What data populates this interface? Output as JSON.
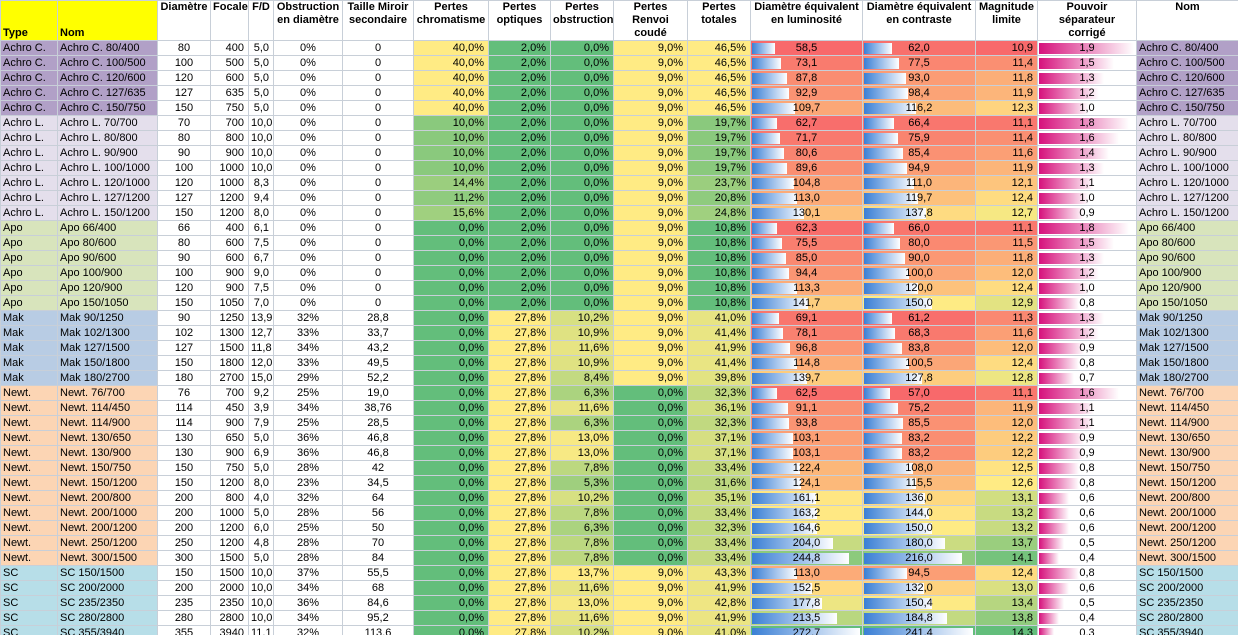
{
  "table": {
    "header": [
      "Type",
      "Nom",
      "Diamètre",
      "Focale",
      "F/D",
      "Obstruction en diamètre",
      "Taille Miroir secondaire",
      "Pertes chromatisme",
      "Pertes optiques",
      "Pertes obstruction",
      "Pertes Renvoi coudé",
      "Pertes totales",
      "Diamètre équivalent en luminosité",
      "Diamètre équivalent en contraste",
      "Magnitude limite",
      "Pouvoir séparateur corrigé",
      "Nom"
    ],
    "rows": [
      [
        "Achro C.",
        "Achro C.  80/400",
        "80",
        "400",
        "5,0",
        "0%",
        "0",
        "40,0%",
        "2,0%",
        "0,0%",
        "9,0%",
        "46,5%",
        "58,5",
        "62,0",
        "10,9",
        "1,9",
        "Achro C.  80/400"
      ],
      [
        "Achro C.",
        "Achro C.  100/500",
        "100",
        "500",
        "5,0",
        "0%",
        "0",
        "40,0%",
        "2,0%",
        "0,0%",
        "9,0%",
        "46,5%",
        "73,1",
        "77,5",
        "11,4",
        "1,5",
        "Achro C.  100/500"
      ],
      [
        "Achro C.",
        "Achro C.  120/600",
        "120",
        "600",
        "5,0",
        "0%",
        "0",
        "40,0%",
        "2,0%",
        "0,0%",
        "9,0%",
        "46,5%",
        "87,8",
        "93,0",
        "11,8",
        "1,3",
        "Achro C.  120/600"
      ],
      [
        "Achro C.",
        "Achro C.  127/635",
        "127",
        "635",
        "5,0",
        "0%",
        "0",
        "40,0%",
        "2,0%",
        "0,0%",
        "9,0%",
        "46,5%",
        "92,9",
        "98,4",
        "11,9",
        "1,2",
        "Achro C.  127/635"
      ],
      [
        "Achro C.",
        "Achro C.  150/750",
        "150",
        "750",
        "5,0",
        "0%",
        "0",
        "40,0%",
        "2,0%",
        "0,0%",
        "9,0%",
        "46,5%",
        "109,7",
        "116,2",
        "12,3",
        "1,0",
        "Achro C.  150/750"
      ],
      [
        "Achro L.",
        "Achro L.  70/700",
        "70",
        "700",
        "10,0",
        "0%",
        "0",
        "10,0%",
        "2,0%",
        "0,0%",
        "9,0%",
        "19,7%",
        "62,7",
        "66,4",
        "11,1",
        "1,8",
        "Achro L.  70/700"
      ],
      [
        "Achro L.",
        "Achro L.  80/800",
        "80",
        "800",
        "10,0",
        "0%",
        "0",
        "10,0%",
        "2,0%",
        "0,0%",
        "9,0%",
        "19,7%",
        "71,7",
        "75,9",
        "11,4",
        "1,6",
        "Achro L.  80/800"
      ],
      [
        "Achro L.",
        "Achro L.  90/900",
        "90",
        "900",
        "10,0",
        "0%",
        "0",
        "10,0%",
        "2,0%",
        "0,0%",
        "9,0%",
        "19,7%",
        "80,6",
        "85,4",
        "11,6",
        "1,4",
        "Achro L.  90/900"
      ],
      [
        "Achro L.",
        "Achro L.  100/1000",
        "100",
        "1000",
        "10,0",
        "0%",
        "0",
        "10,0%",
        "2,0%",
        "0,0%",
        "9,0%",
        "19,7%",
        "89,6",
        "94,9",
        "11,9",
        "1,3",
        "Achro L.  100/1000"
      ],
      [
        "Achro L.",
        "Achro L.  120/1000",
        "120",
        "1000",
        "8,3",
        "0%",
        "0",
        "14,4%",
        "2,0%",
        "0,0%",
        "9,0%",
        "23,7%",
        "104,8",
        "111,0",
        "12,1",
        "1,1",
        "Achro L.  120/1000"
      ],
      [
        "Achro L.",
        "Achro L.  127/1200",
        "127",
        "1200",
        "9,4",
        "0%",
        "0",
        "11,2%",
        "2,0%",
        "0,0%",
        "9,0%",
        "20,8%",
        "113,0",
        "119,7",
        "12,4",
        "1,0",
        "Achro L.  127/1200"
      ],
      [
        "Achro L.",
        "Achro L.  150/1200",
        "150",
        "1200",
        "8,0",
        "0%",
        "0",
        "15,6%",
        "2,0%",
        "0,0%",
        "9,0%",
        "24,8%",
        "130,1",
        "137,8",
        "12,7",
        "0,9",
        "Achro L.  150/1200"
      ],
      [
        "Apo",
        "Apo  66/400",
        "66",
        "400",
        "6,1",
        "0%",
        "0",
        "0,0%",
        "2,0%",
        "0,0%",
        "9,0%",
        "10,8%",
        "62,3",
        "66,0",
        "11,1",
        "1,8",
        "Apo  66/400"
      ],
      [
        "Apo",
        "Apo  80/600",
        "80",
        "600",
        "7,5",
        "0%",
        "0",
        "0,0%",
        "2,0%",
        "0,0%",
        "9,0%",
        "10,8%",
        "75,5",
        "80,0",
        "11,5",
        "1,5",
        "Apo  80/600"
      ],
      [
        "Apo",
        "Apo  90/600",
        "90",
        "600",
        "6,7",
        "0%",
        "0",
        "0,0%",
        "2,0%",
        "0,0%",
        "9,0%",
        "10,8%",
        "85,0",
        "90,0",
        "11,8",
        "1,3",
        "Apo  90/600"
      ],
      [
        "Apo",
        "Apo  100/900",
        "100",
        "900",
        "9,0",
        "0%",
        "0",
        "0,0%",
        "2,0%",
        "0,0%",
        "9,0%",
        "10,8%",
        "94,4",
        "100,0",
        "12,0",
        "1,2",
        "Apo  100/900"
      ],
      [
        "Apo",
        "Apo  120/900",
        "120",
        "900",
        "7,5",
        "0%",
        "0",
        "0,0%",
        "2,0%",
        "0,0%",
        "9,0%",
        "10,8%",
        "113,3",
        "120,0",
        "12,4",
        "1,0",
        "Apo  120/900"
      ],
      [
        "Apo",
        "Apo  150/1050",
        "150",
        "1050",
        "7,0",
        "0%",
        "0",
        "0,0%",
        "2,0%",
        "0,0%",
        "9,0%",
        "10,8%",
        "141,7",
        "150,0",
        "12,9",
        "0,8",
        "Apo  150/1050"
      ],
      [
        "Mak",
        "Mak  90/1250",
        "90",
        "1250",
        "13,9",
        "32%",
        "28,8",
        "0,0%",
        "27,8%",
        "10,2%",
        "9,0%",
        "41,0%",
        "69,1",
        "61,2",
        "11,3",
        "1,3",
        "Mak  90/1250"
      ],
      [
        "Mak",
        "Mak  102/1300",
        "102",
        "1300",
        "12,7",
        "33%",
        "33,7",
        "0,0%",
        "27,8%",
        "10,9%",
        "9,0%",
        "41,4%",
        "78,1",
        "68,3",
        "11,6",
        "1,2",
        "Mak  102/1300"
      ],
      [
        "Mak",
        "Mak  127/1500",
        "127",
        "1500",
        "11,8",
        "34%",
        "43,2",
        "0,0%",
        "27,8%",
        "11,6%",
        "9,0%",
        "41,9%",
        "96,8",
        "83,8",
        "12,0",
        "0,9",
        "Mak  127/1500"
      ],
      [
        "Mak",
        "Mak  150/1800",
        "150",
        "1800",
        "12,0",
        "33%",
        "49,5",
        "0,0%",
        "27,8%",
        "10,9%",
        "9,0%",
        "41,4%",
        "114,8",
        "100,5",
        "12,4",
        "0,8",
        "Mak  150/1800"
      ],
      [
        "Mak",
        "Mak  180/2700",
        "180",
        "2700",
        "15,0",
        "29%",
        "52,2",
        "0,0%",
        "27,8%",
        "8,4%",
        "9,0%",
        "39,8%",
        "139,7",
        "127,8",
        "12,8",
        "0,7",
        "Mak  180/2700"
      ],
      [
        "Newt.",
        "Newt.  76/700",
        "76",
        "700",
        "9,2",
        "25%",
        "19,0",
        "0,0%",
        "27,8%",
        "6,3%",
        "0,0%",
        "32,3%",
        "62,5",
        "57,0",
        "11,1",
        "1,6",
        "Newt.  76/700"
      ],
      [
        "Newt.",
        "Newt.  114/450",
        "114",
        "450",
        "3,9",
        "34%",
        "38,76",
        "0,0%",
        "27,8%",
        "11,6%",
        "0,0%",
        "36,1%",
        "91,1",
        "75,2",
        "11,9",
        "1,1",
        "Newt.  114/450"
      ],
      [
        "Newt.",
        "Newt.  114/900",
        "114",
        "900",
        "7,9",
        "25%",
        "28,5",
        "0,0%",
        "27,8%",
        "6,3%",
        "0,0%",
        "32,3%",
        "93,8",
        "85,5",
        "12,0",
        "1,1",
        "Newt.  114/900"
      ],
      [
        "Newt.",
        "Newt.  130/650",
        "130",
        "650",
        "5,0",
        "36%",
        "46,8",
        "0,0%",
        "27,8%",
        "13,0%",
        "0,0%",
        "37,1%",
        "103,1",
        "83,2",
        "12,2",
        "0,9",
        "Newt.  130/650"
      ],
      [
        "Newt.",
        "Newt.  130/900",
        "130",
        "900",
        "6,9",
        "36%",
        "46,8",
        "0,0%",
        "27,8%",
        "13,0%",
        "0,0%",
        "37,1%",
        "103,1",
        "83,2",
        "12,2",
        "0,9",
        "Newt.  130/900"
      ],
      [
        "Newt.",
        "Newt.  150/750",
        "150",
        "750",
        "5,0",
        "28%",
        "42",
        "0,0%",
        "27,8%",
        "7,8%",
        "0,0%",
        "33,4%",
        "122,4",
        "108,0",
        "12,5",
        "0,8",
        "Newt.  150/750"
      ],
      [
        "Newt.",
        "Newt.  150/1200",
        "150",
        "1200",
        "8,0",
        "23%",
        "34,5",
        "0,0%",
        "27,8%",
        "5,3%",
        "0,0%",
        "31,6%",
        "124,1",
        "115,5",
        "12,6",
        "0,8",
        "Newt.  150/1200"
      ],
      [
        "Newt.",
        "Newt.  200/800",
        "200",
        "800",
        "4,0",
        "32%",
        "64",
        "0,0%",
        "27,8%",
        "10,2%",
        "0,0%",
        "35,1%",
        "161,1",
        "136,0",
        "13,1",
        "0,6",
        "Newt.  200/800"
      ],
      [
        "Newt.",
        "Newt.  200/1000",
        "200",
        "1000",
        "5,0",
        "28%",
        "56",
        "0,0%",
        "27,8%",
        "7,8%",
        "0,0%",
        "33,4%",
        "163,2",
        "144,0",
        "13,2",
        "0,6",
        "Newt.  200/1000"
      ],
      [
        "Newt.",
        "Newt.  200/1200",
        "200",
        "1200",
        "6,0",
        "25%",
        "50",
        "0,0%",
        "27,8%",
        "6,3%",
        "0,0%",
        "32,3%",
        "164,6",
        "150,0",
        "13,2",
        "0,6",
        "Newt.  200/1200"
      ],
      [
        "Newt.",
        "Newt.  250/1200",
        "250",
        "1200",
        "4,8",
        "28%",
        "70",
        "0,0%",
        "27,8%",
        "7,8%",
        "0,0%",
        "33,4%",
        "204,0",
        "180,0",
        "13,7",
        "0,5",
        "Newt.  250/1200"
      ],
      [
        "Newt.",
        "Newt.  300/1500",
        "300",
        "1500",
        "5,0",
        "28%",
        "84",
        "0,0%",
        "27,8%",
        "7,8%",
        "0,0%",
        "33,4%",
        "244,8",
        "216,0",
        "14,1",
        "0,4",
        "Newt.  300/1500"
      ],
      [
        "SC",
        "SC  150/1500",
        "150",
        "1500",
        "10,0",
        "37%",
        "55,5",
        "0,0%",
        "27,8%",
        "13,7%",
        "9,0%",
        "43,3%",
        "113,0",
        "94,5",
        "12,4",
        "0,8",
        "SC  150/1500"
      ],
      [
        "SC",
        "SC  200/2000",
        "200",
        "2000",
        "10,0",
        "34%",
        "68",
        "0,0%",
        "27,8%",
        "11,6%",
        "9,0%",
        "41,9%",
        "152,5",
        "132,0",
        "13,0",
        "0,6",
        "SC  200/2000"
      ],
      [
        "SC",
        "SC  235/2350",
        "235",
        "2350",
        "10,0",
        "36%",
        "84,6",
        "0,0%",
        "27,8%",
        "13,0%",
        "9,0%",
        "42,8%",
        "177,8",
        "150,4",
        "13,4",
        "0,5",
        "SC  235/2350"
      ],
      [
        "SC",
        "SC  280/2800",
        "280",
        "2800",
        "10,0",
        "34%",
        "95,2",
        "0,0%",
        "27,8%",
        "11,6%",
        "9,0%",
        "41,9%",
        "213,5",
        "184,8",
        "13,8",
        "0,4",
        "SC  280/2800"
      ],
      [
        "SC",
        "SC  355/3940",
        "355",
        "3940",
        "11,1",
        "32%",
        "113,6",
        "0,0%",
        "27,8%",
        "10,2%",
        "9,0%",
        "41,0%",
        "272,7",
        "241,4",
        "14,3",
        "0,3",
        "SC  355/3940"
      ]
    ]
  }
}
